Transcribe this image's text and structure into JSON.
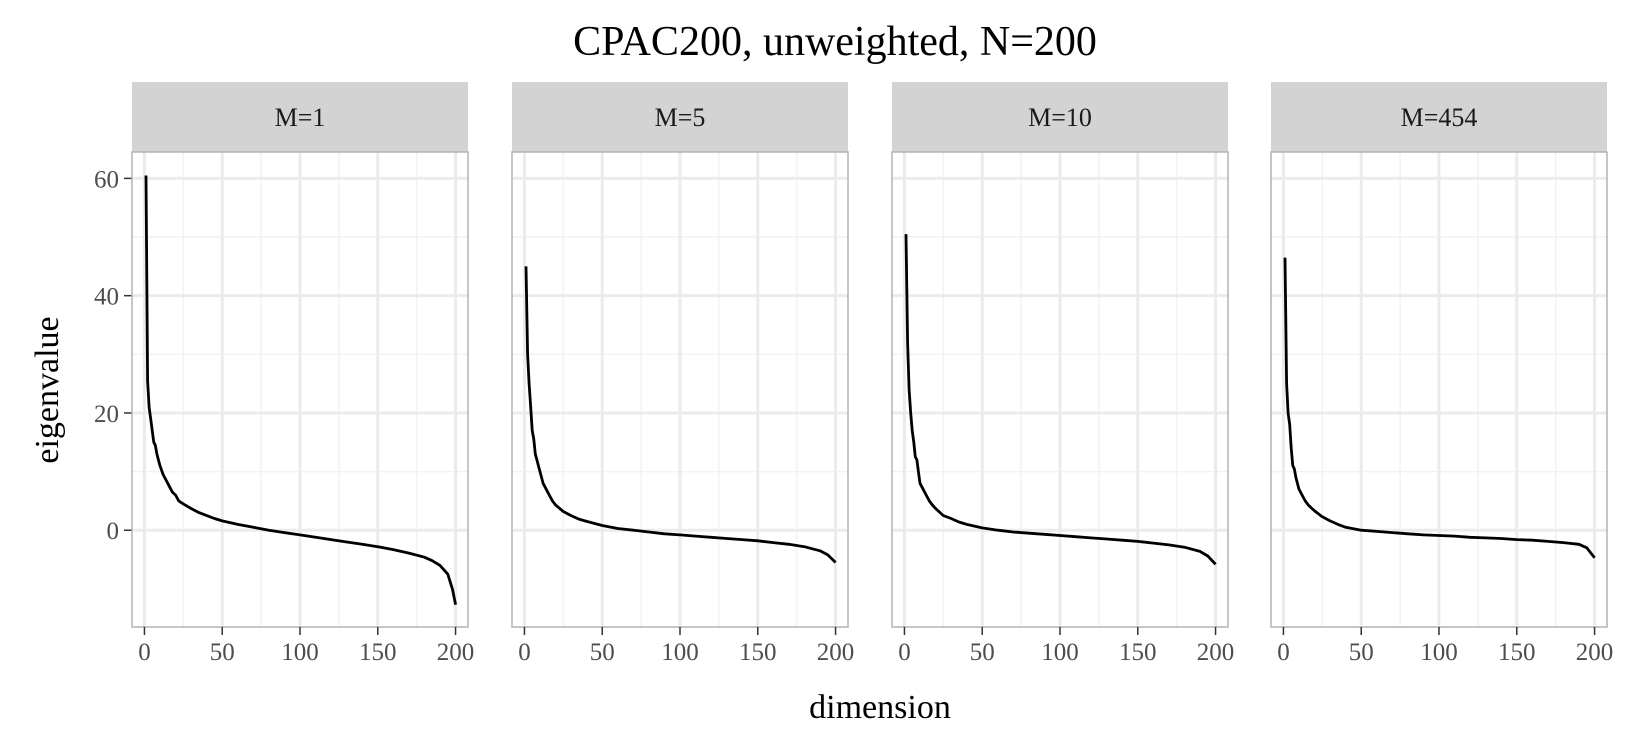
{
  "chart_data": {
    "type": "line",
    "title": "CPAC200, unweighted, N=200",
    "xlabel": "dimension",
    "ylabel": "eigenvalue",
    "xlim": [
      -8,
      208
    ],
    "ylim": [
      -16.5,
      64.5
    ],
    "x_ticks": [
      0,
      50,
      100,
      150,
      200
    ],
    "y_ticks": [
      0,
      20,
      40,
      60
    ],
    "grid": true,
    "legend": "none",
    "colors": {
      "line": "#000000",
      "strip": "#d3d3d3",
      "grid": "#ebebeb",
      "border": "#b3b3b3"
    },
    "panels": [
      {
        "label": "M=1",
        "series": [
          [
            1,
            60.5
          ],
          [
            2,
            25.5
          ],
          [
            3,
            21
          ],
          [
            4,
            19
          ],
          [
            5,
            17
          ],
          [
            6,
            15
          ],
          [
            7,
            14.5
          ],
          [
            8,
            13
          ],
          [
            9,
            12
          ],
          [
            10,
            11
          ],
          [
            12,
            9.5
          ],
          [
            14,
            8.5
          ],
          [
            16,
            7.5
          ],
          [
            18,
            6.5
          ],
          [
            20,
            6
          ],
          [
            22,
            5
          ],
          [
            25,
            4.5
          ],
          [
            30,
            3.7
          ],
          [
            35,
            3
          ],
          [
            40,
            2.5
          ],
          [
            45,
            2
          ],
          [
            50,
            1.6
          ],
          [
            60,
            1
          ],
          [
            70,
            0.5
          ],
          [
            80,
            0
          ],
          [
            90,
            -0.4
          ],
          [
            100,
            -0.8
          ],
          [
            110,
            -1.2
          ],
          [
            120,
            -1.6
          ],
          [
            130,
            -2
          ],
          [
            140,
            -2.4
          ],
          [
            150,
            -2.8
          ],
          [
            160,
            -3.3
          ],
          [
            170,
            -3.9
          ],
          [
            180,
            -4.6
          ],
          [
            185,
            -5.2
          ],
          [
            190,
            -6
          ],
          [
            195,
            -7.5
          ],
          [
            198,
            -10
          ],
          [
            200,
            -12.7
          ]
        ]
      },
      {
        "label": "M=5",
        "series": [
          [
            1,
            45
          ],
          [
            2,
            30
          ],
          [
            3,
            25
          ],
          [
            4,
            21
          ],
          [
            5,
            17
          ],
          [
            6,
            15.5
          ],
          [
            7,
            13
          ],
          [
            8,
            12
          ],
          [
            9,
            11
          ],
          [
            10,
            10
          ],
          [
            12,
            8
          ],
          [
            14,
            7
          ],
          [
            16,
            6
          ],
          [
            18,
            5
          ],
          [
            20,
            4.3
          ],
          [
            25,
            3.2
          ],
          [
            30,
            2.5
          ],
          [
            35,
            1.9
          ],
          [
            40,
            1.5
          ],
          [
            50,
            0.8
          ],
          [
            60,
            0.3
          ],
          [
            70,
            0
          ],
          [
            80,
            -0.3
          ],
          [
            90,
            -0.6
          ],
          [
            100,
            -0.8
          ],
          [
            110,
            -1
          ],
          [
            120,
            -1.2
          ],
          [
            130,
            -1.4
          ],
          [
            140,
            -1.6
          ],
          [
            150,
            -1.8
          ],
          [
            160,
            -2.1
          ],
          [
            170,
            -2.4
          ],
          [
            180,
            -2.8
          ],
          [
            190,
            -3.5
          ],
          [
            195,
            -4.2
          ],
          [
            200,
            -5.5
          ]
        ]
      },
      {
        "label": "M=10",
        "series": [
          [
            1,
            50.5
          ],
          [
            2,
            32
          ],
          [
            3,
            24
          ],
          [
            4,
            20
          ],
          [
            5,
            17
          ],
          [
            6,
            15
          ],
          [
            7,
            12.5
          ],
          [
            8,
            12
          ],
          [
            9,
            10
          ],
          [
            10,
            8
          ],
          [
            12,
            7
          ],
          [
            14,
            6
          ],
          [
            16,
            5
          ],
          [
            18,
            4.3
          ],
          [
            20,
            3.7
          ],
          [
            25,
            2.5
          ],
          [
            30,
            2
          ],
          [
            35,
            1.4
          ],
          [
            40,
            1
          ],
          [
            50,
            0.4
          ],
          [
            60,
            0
          ],
          [
            70,
            -0.3
          ],
          [
            80,
            -0.5
          ],
          [
            90,
            -0.7
          ],
          [
            100,
            -0.9
          ],
          [
            110,
            -1.1
          ],
          [
            120,
            -1.3
          ],
          [
            130,
            -1.5
          ],
          [
            140,
            -1.7
          ],
          [
            150,
            -1.9
          ],
          [
            160,
            -2.2
          ],
          [
            170,
            -2.5
          ],
          [
            180,
            -2.9
          ],
          [
            190,
            -3.6
          ],
          [
            195,
            -4.4
          ],
          [
            200,
            -5.8
          ]
        ]
      },
      {
        "label": "M=454",
        "series": [
          [
            1,
            46.5
          ],
          [
            2,
            25
          ],
          [
            3,
            20
          ],
          [
            4,
            18
          ],
          [
            5,
            14
          ],
          [
            6,
            11
          ],
          [
            7,
            10.5
          ],
          [
            8,
            9
          ],
          [
            9,
            8
          ],
          [
            10,
            7
          ],
          [
            12,
            6
          ],
          [
            14,
            5
          ],
          [
            16,
            4.3
          ],
          [
            18,
            3.8
          ],
          [
            20,
            3.3
          ],
          [
            25,
            2.3
          ],
          [
            30,
            1.6
          ],
          [
            35,
            1
          ],
          [
            40,
            0.5
          ],
          [
            50,
            0
          ],
          [
            60,
            -0.2
          ],
          [
            70,
            -0.4
          ],
          [
            80,
            -0.6
          ],
          [
            90,
            -0.8
          ],
          [
            100,
            -0.9
          ],
          [
            110,
            -1
          ],
          [
            120,
            -1.2
          ],
          [
            130,
            -1.3
          ],
          [
            140,
            -1.4
          ],
          [
            150,
            -1.6
          ],
          [
            160,
            -1.7
          ],
          [
            170,
            -1.9
          ],
          [
            180,
            -2.1
          ],
          [
            190,
            -2.4
          ],
          [
            195,
            -3
          ],
          [
            200,
            -4.7
          ]
        ]
      }
    ]
  }
}
